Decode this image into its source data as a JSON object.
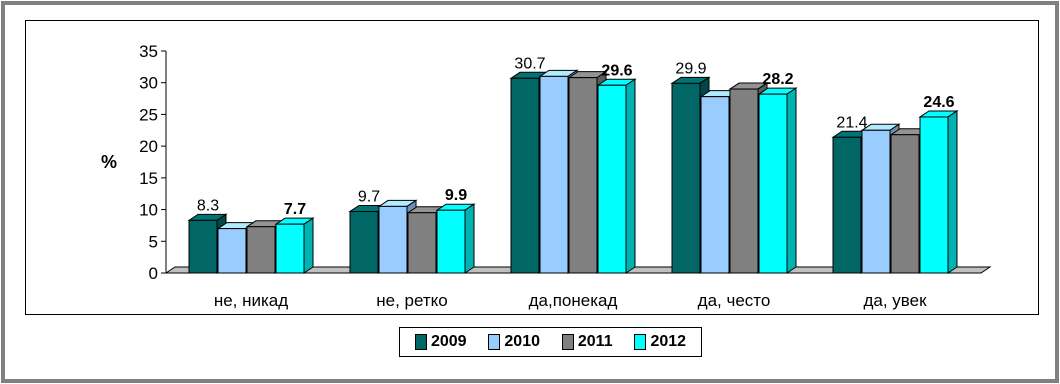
{
  "chart_data": {
    "type": "bar",
    "ylabel": "%",
    "xlabel": "",
    "title": "",
    "ylim": [
      0,
      35
    ],
    "yticks": [
      "0",
      "5",
      "10",
      "15",
      "20",
      "25",
      "30",
      "35"
    ],
    "categories": [
      "не, никад",
      "не, ретко",
      "да,понекад",
      "да, често",
      "да, увек"
    ],
    "series": [
      {
        "name": "2009",
        "color": "#006666",
        "values": [
          8.3,
          9.7,
          30.7,
          29.9,
          21.4
        ]
      },
      {
        "name": "2010",
        "color": "#99ccff",
        "values": [
          7.0,
          10.5,
          31.0,
          27.8,
          22.5
        ]
      },
      {
        "name": "2011",
        "color": "#808080",
        "values": [
          7.3,
          9.5,
          30.8,
          29.0,
          21.8
        ]
      },
      {
        "name": "2012",
        "color": "#00ffff",
        "values": [
          7.7,
          9.9,
          29.6,
          28.2,
          24.6
        ]
      }
    ],
    "data_labels": [
      {
        "text": "8.3",
        "category": 0,
        "series": 0,
        "bold": false
      },
      {
        "text": "7.7",
        "category": 0,
        "series": 3,
        "bold": true
      },
      {
        "text": "9.7",
        "category": 1,
        "series": 0,
        "bold": false
      },
      {
        "text": "9.9",
        "category": 1,
        "series": 3,
        "bold": true
      },
      {
        "text": "30.7",
        "category": 2,
        "series": 0,
        "bold": false
      },
      {
        "text": "29.6",
        "category": 2,
        "series": 3,
        "bold": true
      },
      {
        "text": "29.9",
        "category": 3,
        "series": 0,
        "bold": false
      },
      {
        "text": "28.2",
        "category": 3,
        "series": 3,
        "bold": true
      },
      {
        "text": "21.4",
        "category": 4,
        "series": 0,
        "bold": false
      },
      {
        "text": "24.6",
        "category": 4,
        "series": 3,
        "bold": true
      }
    ],
    "legend_position": "bottom",
    "grid": false
  }
}
